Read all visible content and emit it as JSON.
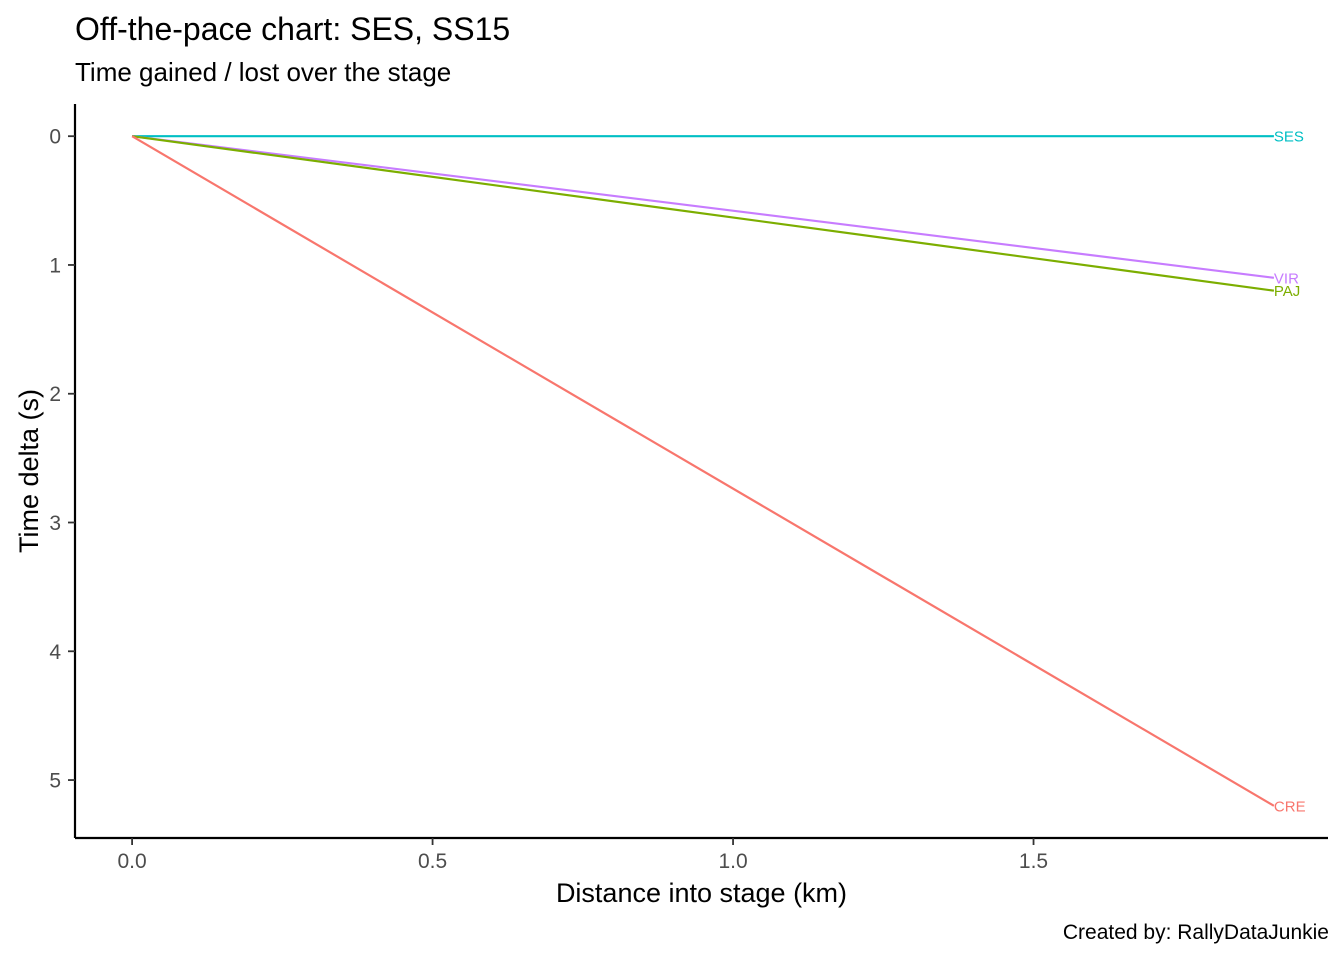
{
  "chart_data": {
    "type": "line",
    "title": "Off-the-pace chart: SES, SS15",
    "subtitle": "Time gained / lost over the stage",
    "caption": "Created by: RallyDataJunkie",
    "xlabel": "Distance into stage (km)",
    "ylabel": "Time delta (s)",
    "xlim": [
      -0.095,
      1.99
    ],
    "ylim": [
      -0.25,
      5.45
    ],
    "y_reversed": true,
    "x_ticks": [
      0.0,
      0.5,
      1.0,
      1.5
    ],
    "x_tick_labels": [
      "0.0",
      "0.5",
      "1.0",
      "1.5"
    ],
    "y_ticks": [
      0,
      1,
      2,
      3,
      4,
      5
    ],
    "y_tick_labels": [
      "0",
      "1",
      "2",
      "3",
      "4",
      "5"
    ],
    "grid": false,
    "legend": "none (series labelled at line ends)",
    "series": [
      {
        "name": "SES",
        "color": "#00BFC4",
        "x": [
          0.0,
          1.9
        ],
        "values": [
          0.0,
          0.0
        ]
      },
      {
        "name": "VIR",
        "color": "#C77CFF",
        "x": [
          0.0,
          1.9
        ],
        "values": [
          0.0,
          1.1
        ]
      },
      {
        "name": "PAJ",
        "color": "#7CAE00",
        "x": [
          0.0,
          1.9
        ],
        "values": [
          0.0,
          1.2
        ]
      },
      {
        "name": "CRE",
        "color": "#F8766D",
        "x": [
          0.0,
          1.9
        ],
        "values": [
          0.0,
          5.2
        ]
      }
    ]
  }
}
